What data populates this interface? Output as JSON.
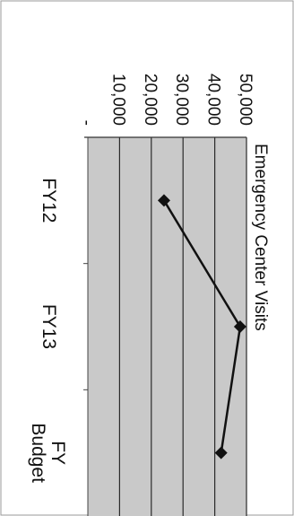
{
  "chart_data": {
    "type": "line",
    "title": "Emergency Center Visits",
    "categories": [
      "FY12",
      "FY13",
      "FY\nBudget"
    ],
    "series": [
      {
        "values": [
          24000,
          48000,
          42000
        ]
      }
    ],
    "ylim": [
      0,
      50000
    ],
    "yticks": [
      {
        "value": 0,
        "label": "-"
      },
      {
        "value": 10000,
        "label": "10,000"
      },
      {
        "value": 20000,
        "label": "20,000"
      },
      {
        "value": 30000,
        "label": "30,000"
      },
      {
        "value": 40000,
        "label": "40,000"
      },
      {
        "value": 50000,
        "label": "50,000"
      }
    ],
    "grid": true,
    "orientation": "rotated-90-clockwise",
    "colors": {
      "plot_background": "#c9c9c9",
      "gridline": "#2a2a2a",
      "series": "#111111",
      "frame": "#9a9a9a"
    }
  }
}
